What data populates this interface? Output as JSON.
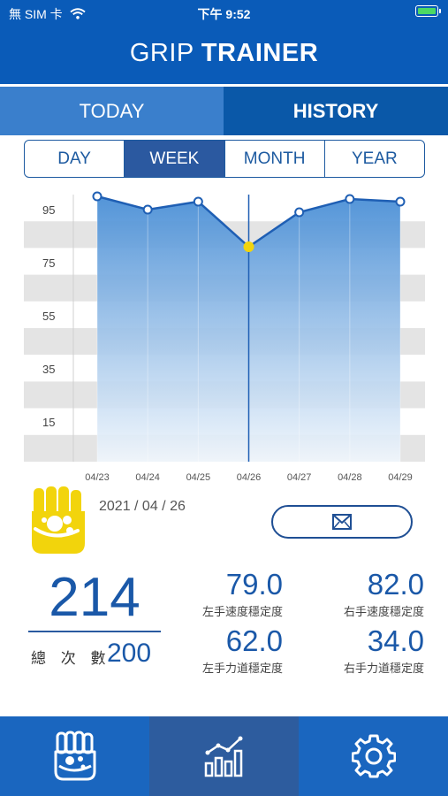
{
  "status_bar": {
    "carrier": "無 SIM 卡",
    "time": "下午 9:52"
  },
  "header": {
    "title_light": "GRIP ",
    "title_bold": "TRAINER"
  },
  "main_tabs": [
    {
      "label": "TODAY",
      "active": false
    },
    {
      "label": "HISTORY",
      "active": true
    }
  ],
  "period_tabs": [
    {
      "label": "DAY",
      "active": false
    },
    {
      "label": "WEEK",
      "active": true
    },
    {
      "label": "MONTH",
      "active": false
    },
    {
      "label": "YEAR",
      "active": false
    }
  ],
  "chart_data": {
    "type": "area",
    "x": [
      "04/23",
      "04/24",
      "04/25",
      "04/26",
      "04/27",
      "04/28",
      "04/29"
    ],
    "series": [
      {
        "values": [
          100,
          95,
          98,
          81,
          94,
          99,
          98
        ]
      }
    ],
    "ylim": [
      0,
      100
    ],
    "y_ticks": [
      95,
      75,
      55,
      35,
      15
    ],
    "selected_index": 3,
    "grid": true,
    "colors": {
      "line": "#1f5fb4",
      "fill_top": "#4a8fd6",
      "fill_bottom": "#f0f6fc",
      "selected": "#f2d40c"
    }
  },
  "info": {
    "date": "2021 / 04 / 26",
    "total": "214",
    "total_label": "總 次 數",
    "target": "200"
  },
  "stats": [
    {
      "value": "79.0",
      "label": "左手速度穩定度"
    },
    {
      "value": "82.0",
      "label": "右手速度穩定度"
    },
    {
      "value": "62.0",
      "label": "左手力道穩定度"
    },
    {
      "value": "34.0",
      "label": "右手力道穩定度"
    }
  ],
  "icons": {
    "wifi": "wifi-icon",
    "battery": "battery-charging-icon",
    "logo": "fist-icon",
    "mail": "envelope-icon",
    "nav": [
      "fist-icon",
      "chart-icon",
      "gear-icon"
    ]
  },
  "colors": {
    "primary": "#0a5bb8",
    "accent_yellow": "#f2d40c",
    "active_nav": "#2d5c9e"
  }
}
